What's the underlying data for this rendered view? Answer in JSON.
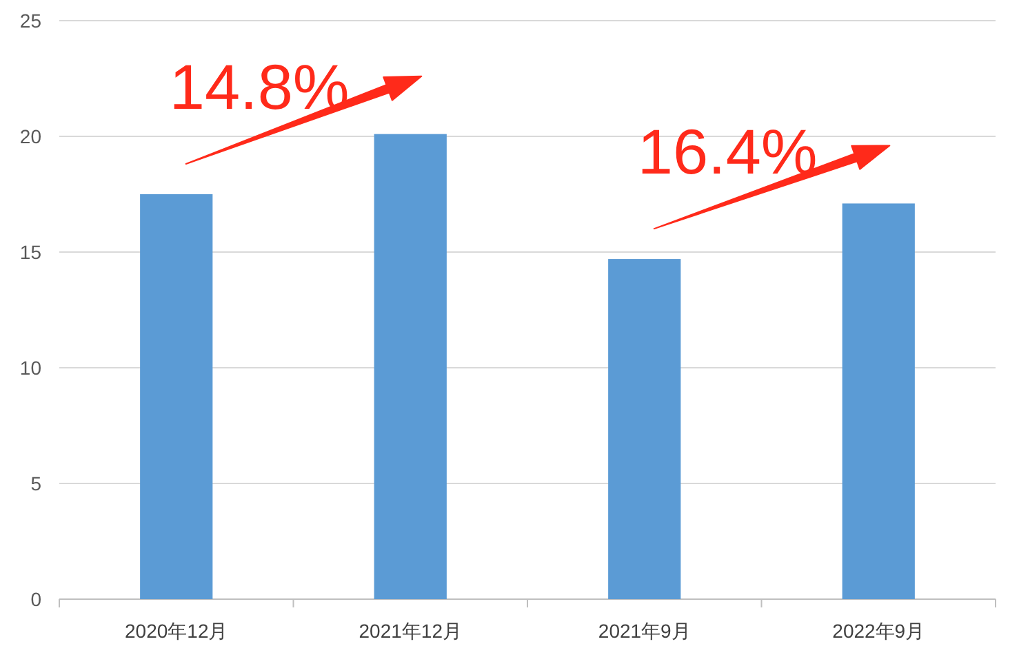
{
  "chart_data": {
    "type": "bar",
    "categories": [
      "2020年12月",
      "2021年12月",
      "2021年9月",
      "2022年9月"
    ],
    "values": [
      17.5,
      20.1,
      14.7,
      17.1
    ],
    "color": "#5b9bd5",
    "ylim": [
      0,
      25
    ],
    "yticks": [
      0,
      5,
      10,
      15,
      20,
      25
    ],
    "grid": "y",
    "annotations": [
      "14.8%",
      "16.4%"
    ]
  }
}
